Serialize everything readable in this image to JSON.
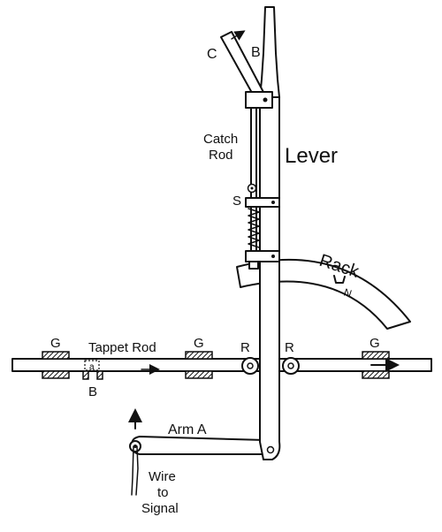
{
  "labels": {
    "c": "C",
    "b_top": "B",
    "catch_rod": [
      "Catch",
      "Rod"
    ],
    "lever": "Lever",
    "s": "S",
    "rack": "Rack",
    "n": "N",
    "g1": "G",
    "tappet_rod": "Tappet Rod",
    "g2": "G",
    "r1": "R",
    "r2": "R",
    "g3": "G",
    "a_small": "a",
    "b_bottom": "B",
    "arm_a": "Arm A",
    "wire": [
      "Wire",
      "to",
      "Signal"
    ]
  }
}
